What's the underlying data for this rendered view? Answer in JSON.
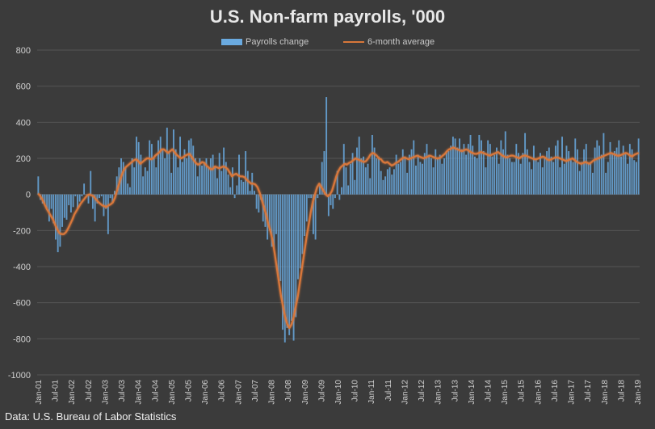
{
  "chart_data": {
    "type": "bar",
    "title": "U.S. Non-farm payrolls, '000",
    "source": "Data: U.S. Bureau of Labor Statistics",
    "legend_position": "top-center",
    "grid": true,
    "ylim": [
      -1000,
      800
    ],
    "yticks": [
      "800",
      "600",
      "400",
      "200",
      "0",
      "-200",
      "-400",
      "-600",
      "-800",
      "-1000"
    ],
    "x_tick_labels": [
      "Jan-01",
      "Jul-01",
      "Jan-02",
      "Jul-02",
      "Jan-03",
      "Jul-03",
      "Jan-04",
      "Jul-04",
      "Jan-05",
      "Jul-05",
      "Jan-06",
      "Jul-06",
      "Jan-07",
      "Jul-07",
      "Jan-08",
      "Jul-08",
      "Jan-09",
      "Jul-09",
      "Jan-10",
      "Jul-10",
      "Jan-11",
      "Jul-11",
      "Jan-12",
      "Jul-12",
      "Jan-13",
      "Jul-13",
      "Jan-14",
      "Jul-14",
      "Jan-15",
      "Jul-15",
      "Jan-16",
      "Jul-16",
      "Jan-17",
      "Jul-17",
      "Jan-18",
      "Jul-18",
      "Jan-19"
    ],
    "series": [
      {
        "name": "Payrolls change",
        "type": "bar",
        "color": "#6aaae0",
        "values": [
          100,
          -30,
          -50,
          -60,
          -80,
          -150,
          -80,
          -160,
          -250,
          -320,
          -290,
          -180,
          -130,
          -140,
          -60,
          -100,
          -70,
          -10,
          -80,
          -40,
          -10,
          60,
          0,
          -50,
          130,
          -80,
          -150,
          -50,
          -20,
          -10,
          -120,
          -80,
          -220,
          -20,
          -50,
          20,
          100,
          150,
          200,
          180,
          150,
          60,
          40,
          200,
          150,
          320,
          290,
          220,
          100,
          150,
          130,
          300,
          280,
          200,
          150,
          300,
          320,
          250,
          200,
          370,
          240,
          120,
          360,
          250,
          150,
          320,
          180,
          250,
          200,
          300,
          310,
          270,
          200,
          100,
          200,
          160,
          180,
          200,
          150,
          200,
          220,
          150,
          90,
          230,
          130,
          260,
          180,
          110,
          40,
          150,
          -20,
          50,
          220,
          80,
          70,
          240,
          130,
          20,
          120,
          20,
          -80,
          -100,
          -30,
          -150,
          -180,
          -250,
          -200,
          -290,
          -300,
          -220,
          -460,
          -480,
          -750,
          -820,
          -740,
          -780,
          -700,
          -810,
          -680,
          -470,
          -410,
          -330,
          -230,
          -150,
          -20,
          -20,
          -220,
          -250,
          -20,
          60,
          180,
          240,
          540,
          -120,
          -60,
          -80,
          -20,
          130,
          -30,
          40,
          280,
          150,
          50,
          170,
          230,
          80,
          260,
          320,
          200,
          210,
          150,
          170,
          90,
          330,
          260,
          200,
          210,
          130,
          80,
          100,
          140,
          150,
          110,
          140,
          220,
          170,
          180,
          250,
          210,
          120,
          220,
          250,
          300,
          160,
          220,
          180,
          170,
          230,
          280,
          220,
          200,
          150,
          250,
          200,
          220,
          170,
          200,
          240,
          240,
          270,
          320,
          310,
          260,
          310,
          250,
          280,
          220,
          280,
          330,
          270,
          210,
          200,
          330,
          300,
          240,
          150,
          300,
          280,
          210,
          220,
          260,
          170,
          300,
          250,
          350,
          220,
          200,
          180,
          180,
          280,
          230,
          170,
          230,
          340,
          250,
          180,
          140,
          270,
          200,
          180,
          230,
          150,
          200,
          240,
          260,
          210,
          180,
          270,
          300,
          150,
          320,
          170,
          270,
          240,
          190,
          180,
          310,
          250,
          130,
          180,
          250,
          280,
          170,
          180,
          120,
          260,
          300,
          270,
          220,
          340,
          120,
          180,
          290,
          230,
          240,
          260,
          300,
          210,
          270,
          230,
          170,
          280,
          250,
          190,
          180,
          310
        ]
      },
      {
        "name": "6-month average",
        "type": "line",
        "color": "#d8773a",
        "values": [
          5,
          -10,
          -30,
          -55,
          -80,
          -100,
          -120,
          -140,
          -170,
          -195,
          -215,
          -220,
          -220,
          -210,
          -190,
          -165,
          -140,
          -110,
          -90,
          -70,
          -50,
          -35,
          -20,
          -5,
          0,
          -5,
          -10,
          -25,
          -40,
          -50,
          -60,
          -65,
          -70,
          -60,
          -55,
          -45,
          -20,
          20,
          60,
          100,
          130,
          150,
          160,
          170,
          180,
          190,
          195,
          185,
          170,
          180,
          190,
          200,
          200,
          195,
          200,
          215,
          225,
          235,
          250,
          250,
          240,
          230,
          240,
          250,
          235,
          220,
          210,
          200,
          205,
          215,
          220,
          225,
          210,
          190,
          175,
          165,
          170,
          180,
          175,
          160,
          150,
          140,
          140,
          155,
          150,
          145,
          150,
          155,
          150,
          140,
          120,
          100,
          110,
          115,
          105,
          100,
          100,
          95,
          80,
          70,
          60,
          60,
          55,
          40,
          10,
          -30,
          -70,
          -110,
          -160,
          -200,
          -250,
          -320,
          -400,
          -480,
          -560,
          -620,
          -680,
          -720,
          -740,
          -720,
          -680,
          -620,
          -560,
          -480,
          -400,
          -320,
          -240,
          -170,
          -100,
          -40,
          0,
          40,
          60,
          40,
          20,
          0,
          -10,
          0,
          20,
          60,
          100,
          130,
          150,
          160,
          170,
          165,
          175,
          180,
          190,
          200,
          195,
          190,
          185,
          180,
          185,
          200,
          220,
          230,
          225,
          215,
          200,
          195,
          180,
          175,
          180,
          170,
          160,
          165,
          175,
          180,
          190,
          200,
          205,
          200,
          195,
          200,
          205,
          210,
          215,
          210,
          205,
          200,
          205,
          210,
          215,
          210,
          205,
          200,
          200,
          205,
          215,
          225,
          240,
          250,
          255,
          260,
          255,
          250,
          245,
          240,
          245,
          250,
          245,
          235,
          230,
          225,
          225,
          230,
          235,
          230,
          225,
          220,
          215,
          220,
          225,
          230,
          235,
          225,
          215,
          210,
          205,
          210,
          215,
          215,
          210,
          205,
          200,
          210,
          215,
          215,
          210,
          205,
          200,
          195,
          195,
          200,
          205,
          210,
          205,
          195,
          190,
          195,
          200,
          205,
          205,
          200,
          195,
          190,
          185,
          190,
          195,
          200,
          190,
          180,
          175,
          170,
          175,
          180,
          175,
          170,
          180,
          190,
          195,
          200,
          205,
          210,
          215,
          220,
          225,
          230,
          225,
          220,
          215,
          215,
          220,
          225,
          230,
          225,
          215,
          210,
          220,
          225,
          230
        ]
      }
    ]
  }
}
